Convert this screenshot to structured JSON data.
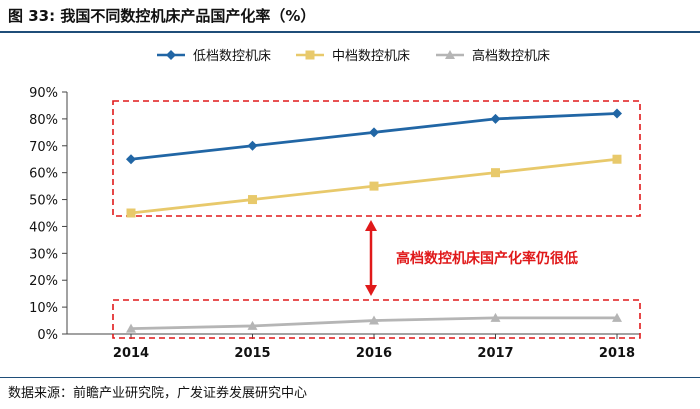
{
  "header": {
    "title": "图 33: 我国不同数控机床产品国产化率（%）"
  },
  "footer": {
    "source": "数据来源：前瞻产业研究院，广发证券发展研究中心"
  },
  "annotation": {
    "text": "高档数控机床国产化率仍很低"
  },
  "colors": {
    "low": "#2166a5",
    "mid": "#e8c96b",
    "high": "#b5b5b5",
    "annotation": "#e0191a",
    "axis": "#444444"
  },
  "chart_data": {
    "type": "line",
    "title": "我国不同数控机床产品国产化率（%）",
    "x": [
      2014,
      2015,
      2016,
      2017,
      2018
    ],
    "x_tick_labels": [
      "2014",
      "2015",
      "2016",
      "2017",
      "2018"
    ],
    "y_tick_labels": [
      "0%",
      "10%",
      "20%",
      "30%",
      "40%",
      "50%",
      "60%",
      "70%",
      "80%",
      "90%"
    ],
    "ylim": [
      0,
      90
    ],
    "grid": false,
    "legend_position": "top",
    "series": [
      {
        "name": "低档数控机床",
        "values": [
          65,
          70,
          75,
          80,
          82
        ],
        "marker": "diamond"
      },
      {
        "name": "中档数控机床",
        "values": [
          45,
          50,
          55,
          60,
          65
        ],
        "marker": "square"
      },
      {
        "name": "高档数控机床",
        "values": [
          2,
          3,
          5,
          6,
          6
        ],
        "marker": "triangle"
      }
    ]
  }
}
